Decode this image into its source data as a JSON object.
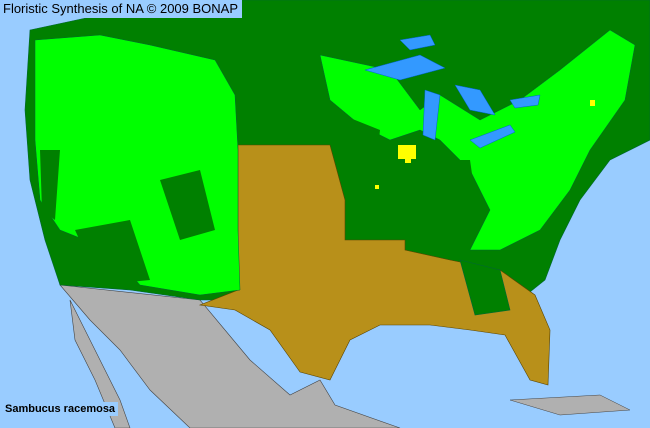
{
  "header": {
    "title": "Floristic Synthesis of NA © 2009 BONAP"
  },
  "species": {
    "name": "Sambucus racemosa"
  },
  "colors": {
    "ocean": "#99ccff",
    "lakes": "#3399ff",
    "present_not_rare": "#00ff00",
    "present_in_state": "#008000",
    "not_present": "#b8901a",
    "rare": "#ffff00",
    "outside_area": "#b0b0b0"
  }
}
